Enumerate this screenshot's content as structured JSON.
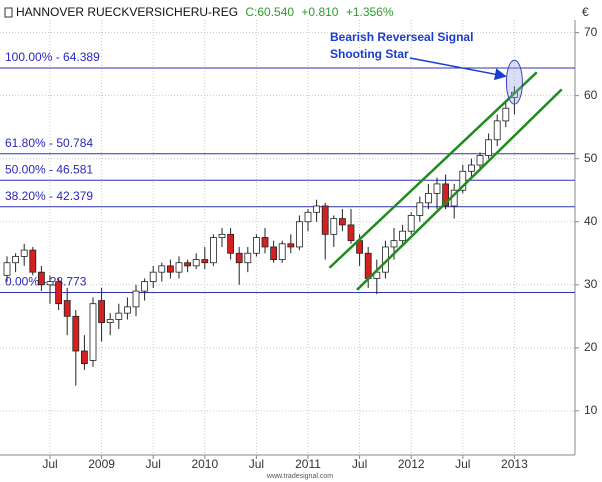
{
  "chart_data": {
    "type": "candlestick",
    "title": "HANNOVER RUECKVERSICHERU-REG",
    "quote": {
      "close": "C:60.540",
      "change": "+0.810",
      "change_pct": "+1.356%"
    },
    "currency": "€",
    "source": "www.tradesignal.com",
    "categories": [
      null,
      null,
      null,
      null,
      null,
      "Jul",
      null,
      null,
      null,
      null,
      null,
      "2009",
      null,
      null,
      null,
      null,
      null,
      "Jul",
      null,
      null,
      null,
      null,
      null,
      "2010",
      null,
      null,
      null,
      null,
      null,
      "Jul",
      null,
      null,
      null,
      null,
      null,
      "2011",
      null,
      null,
      null,
      null,
      null,
      "Jul",
      null,
      null,
      null,
      null,
      null,
      "2012",
      null,
      null,
      null,
      null,
      null,
      "Jul",
      null,
      null,
      null,
      null,
      null,
      "2013"
    ],
    "open": [
      31.5,
      33.5,
      34.5,
      35.5,
      32,
      30,
      30.5,
      27.5,
      25,
      19.5,
      18,
      27.5,
      24,
      24.5,
      25.5,
      26.5,
      29,
      30.5,
      32,
      33,
      32,
      33.5,
      33,
      34,
      33.5,
      37.5,
      38,
      35,
      33.5,
      35,
      37.5,
      36,
      34,
      36.5,
      36,
      40,
      41.5,
      42.5,
      38,
      40.5,
      39.5,
      37,
      35,
      31,
      32,
      36,
      37,
      38.5,
      41,
      43,
      44.5,
      46,
      42.5,
      45,
      48,
      49,
      50.5,
      53,
      56,
      59.73
    ],
    "high": [
      34.5,
      35,
      36.5,
      36,
      33,
      31.5,
      31,
      29.5,
      26,
      22,
      28,
      29.5,
      25.5,
      27,
      28,
      30,
      31,
      33,
      33.5,
      34,
      34.5,
      34,
      35,
      36,
      38,
      39,
      39,
      36,
      36,
      38,
      39,
      37,
      37,
      38,
      41,
      42,
      43.5,
      43,
      41,
      42,
      42,
      38,
      36,
      34,
      37,
      39,
      39.5,
      41.5,
      44,
      46,
      47,
      47.5,
      46,
      49,
      50,
      51,
      54,
      57,
      59,
      61.5
    ],
    "low": [
      30.5,
      32,
      33,
      31.5,
      29,
      27,
      26,
      22,
      14,
      16.5,
      17,
      21,
      22,
      23,
      24.5,
      25,
      27.5,
      29.5,
      30.5,
      31,
      31,
      32,
      32.5,
      32.5,
      33,
      36,
      34,
      30,
      32,
      34.5,
      35,
      33.5,
      33.5,
      35,
      35.5,
      38.5,
      40,
      34,
      36,
      38.5,
      36.5,
      33,
      29.5,
      28.5,
      31,
      34,
      36,
      38,
      40,
      42,
      42,
      42,
      40.5,
      44.5,
      47,
      48,
      50,
      52,
      55,
      57
    ],
    "close": [
      33.5,
      34.5,
      35.5,
      32,
      30,
      30.5,
      27,
      25,
      19.5,
      17.5,
      27,
      24,
      24.5,
      25.5,
      26.5,
      29,
      30.5,
      32,
      33,
      32,
      33.5,
      33,
      34,
      33.5,
      37.5,
      38,
      35,
      33.5,
      35,
      37.5,
      36,
      34,
      36.5,
      36,
      40,
      41.5,
      42.5,
      38,
      40.5,
      39.5,
      37,
      35,
      31,
      32,
      36,
      37,
      38.5,
      41,
      43,
      44.5,
      46,
      42.5,
      45,
      48,
      49,
      50.5,
      53,
      56,
      58,
      60.54
    ],
    "up_color": "#ffffff",
    "down_color": "#d42020",
    "ylim": [
      3,
      72
    ],
    "yticks": [
      10,
      20,
      30,
      40,
      50,
      60,
      70
    ],
    "grid": true,
    "fib_levels": [
      {
        "label": "100.00% - 64.389",
        "value": 64.389
      },
      {
        "label": "61.80% - 50.784",
        "value": 50.784
      },
      {
        "label": "50.00% - 46.581",
        "value": 46.581
      },
      {
        "label": "38.20% - 42.379",
        "value": 42.379
      },
      {
        "label": "0.00% - 28.773",
        "value": 28.773
      }
    ],
    "fib_color": "#3030b0",
    "trend_lines": [
      {
        "color": "#1e8c1e",
        "x": [
          37.5,
          61.6
        ],
        "y": [
          32.7,
          63.7
        ]
      },
      {
        "color": "#1e8c1e",
        "x": [
          40.7,
          64.5
        ],
        "y": [
          29.2,
          61
        ]
      }
    ],
    "annotations": [
      "Bearish Reverseal Signal",
      "Shooting Star"
    ]
  }
}
